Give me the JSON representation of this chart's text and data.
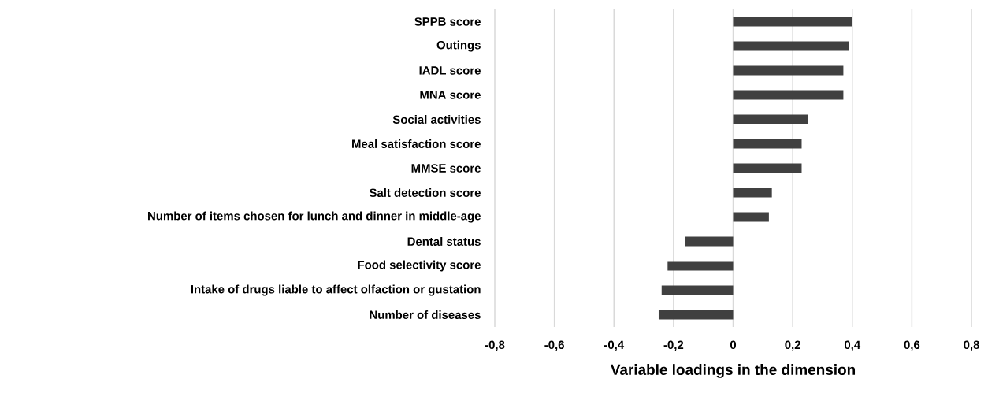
{
  "chart_data": {
    "type": "bar",
    "orientation": "horizontal",
    "xlabel": "Variable loadings in the dimension",
    "categories": [
      "SPPB score",
      "Outings",
      "IADL score",
      "MNA score",
      "Social activities",
      "Meal satisfaction score",
      "MMSE score",
      "Salt detection score",
      "Number of items chosen for lunch and dinner in middle-age",
      "Dental status",
      "Food selectivity score",
      "Intake of drugs liable to affect olfaction or gustation",
      "Number of diseases"
    ],
    "values": [
      0.4,
      0.39,
      0.37,
      0.37,
      0.25,
      0.23,
      0.23,
      0.13,
      0.12,
      -0.16,
      -0.22,
      -0.24,
      -0.25
    ],
    "color": "#404040",
    "xlim": [
      -0.8,
      0.8
    ],
    "xticks": [
      {
        "value": -0.8,
        "label": "-0,8"
      },
      {
        "value": -0.6,
        "label": "-0,6"
      },
      {
        "value": -0.4,
        "label": "-0,4"
      },
      {
        "value": -0.2,
        "label": "-0,2"
      },
      0,
      {
        "value": 0.2,
        "label": "0,2"
      },
      {
        "value": 0.4,
        "label": "0,4"
      },
      {
        "value": 0.6,
        "label": "0,6"
      },
      {
        "value": 0.8,
        "label": "0,8"
      }
    ],
    "grid": "x"
  }
}
